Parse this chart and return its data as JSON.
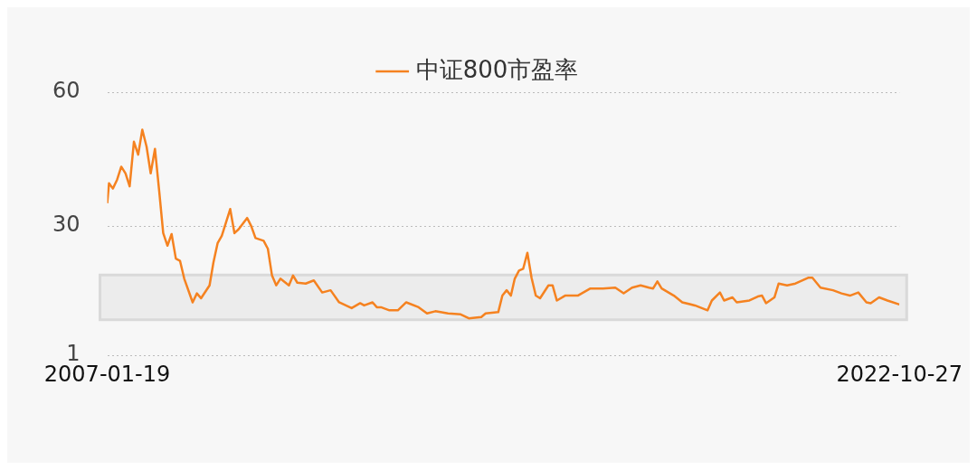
{
  "chart_data": {
    "type": "line",
    "legend": "top",
    "grid": "y",
    "marker": "none",
    "line_style": "solid",
    "ylim": [
      1,
      60
    ],
    "yticks": [
      1,
      30,
      60
    ],
    "xlim": [
      "2007-01-19",
      "2022-10-27"
    ],
    "xticks": [
      "2007-01-19",
      "2022-10-27"
    ],
    "bands": [
      {
        "axis": "y",
        "from": 9,
        "to": 19,
        "color": "#d9d9d9"
      }
    ],
    "series": [
      {
        "name": "中证800市盈率",
        "color": "#f58220",
        "x": [
          "2007-01-19",
          "2007-02",
          "2007-03",
          "2007-04",
          "2007-05",
          "2007-06",
          "2007-07",
          "2007-08",
          "2007-09",
          "2007-10",
          "2007-11",
          "2007-12",
          "2008-01",
          "2008-02",
          "2008-03",
          "2008-04",
          "2008-05",
          "2008-06",
          "2008-07",
          "2008-08",
          "2008-10",
          "2008-11",
          "2008-12",
          "2009-02",
          "2009-03",
          "2009-04",
          "2009-05",
          "2009-07",
          "2009-08",
          "2009-09",
          "2009-11",
          "2009-12",
          "2010-01",
          "2010-03",
          "2010-04",
          "2010-05",
          "2010-06",
          "2010-07",
          "2010-09",
          "2010-10",
          "2010-11",
          "2011-01",
          "2011-03",
          "2011-05",
          "2011-07",
          "2011-09",
          "2011-12",
          "2012-02",
          "2012-03",
          "2012-05",
          "2012-06",
          "2012-07",
          "2012-09",
          "2012-11",
          "2013-01",
          "2013-04",
          "2013-06",
          "2013-08",
          "2013-11",
          "2014-02",
          "2014-04",
          "2014-07",
          "2014-08",
          "2014-11",
          "2014-12",
          "2015-01",
          "2015-02",
          "2015-03",
          "2015-04",
          "2015-05",
          "2015-06",
          "2015-07",
          "2015-08",
          "2015-09",
          "2015-11",
          "2015-12",
          "2016-01",
          "2016-03",
          "2016-06",
          "2016-09",
          "2016-12",
          "2017-03",
          "2017-05",
          "2017-07",
          "2017-09",
          "2017-11",
          "2017-12",
          "2018-01",
          "2018-02",
          "2018-05",
          "2018-07",
          "2018-10",
          "2019-01",
          "2019-02",
          "2019-04",
          "2019-05",
          "2019-07",
          "2019-08",
          "2019-11",
          "2020-01",
          "2020-02",
          "2020-03",
          "2020-05",
          "2020-06",
          "2020-08",
          "2020-10",
          "2021-01",
          "2021-02",
          "2021-04",
          "2021-07",
          "2021-09",
          "2021-11",
          "2022-01",
          "2022-03",
          "2022-04",
          "2022-06",
          "2022-08",
          "2022-10-27"
        ],
        "values": [
          35.1,
          39.6,
          38.4,
          40.4,
          43.3,
          41.8,
          38.9,
          48.9,
          46,
          51.6,
          47.8,
          41.8,
          47.3,
          37.8,
          28.4,
          25.6,
          28.2,
          22.7,
          22.2,
          18.2,
          12.9,
          14.9,
          13.8,
          16.7,
          21.8,
          26.2,
          27.8,
          33.8,
          28.4,
          29.3,
          31.8,
          30,
          27.3,
          26.7,
          24.9,
          18.9,
          16.7,
          18.2,
          16.7,
          18.9,
          17.3,
          17.1,
          17.8,
          15.1,
          15.6,
          12.9,
          11.6,
          12.7,
          12.2,
          12.9,
          11.8,
          11.8,
          11.1,
          11.1,
          12.9,
          11.8,
          10.4,
          10.9,
          10.4,
          10.2,
          9.3,
          9.6,
          10.4,
          10.7,
          14.4,
          15.6,
          14.4,
          18.2,
          20,
          20.4,
          24,
          18.4,
          14.4,
          13.8,
          16.7,
          16.7,
          13.3,
          14.4,
          14.4,
          16,
          16,
          16.2,
          14.9,
          16.2,
          16.7,
          16.2,
          16,
          17.6,
          16,
          14.4,
          12.9,
          12.2,
          11.1,
          13.3,
          15.1,
          13.3,
          14,
          12.9,
          13.3,
          14.2,
          14.4,
          12.7,
          14,
          17.1,
          16.7,
          17.1,
          18.4,
          18.4,
          16.2,
          15.6,
          14.9,
          14.4,
          15.1,
          12.9,
          12.7,
          14,
          13.3,
          12.4
        ]
      }
    ]
  }
}
